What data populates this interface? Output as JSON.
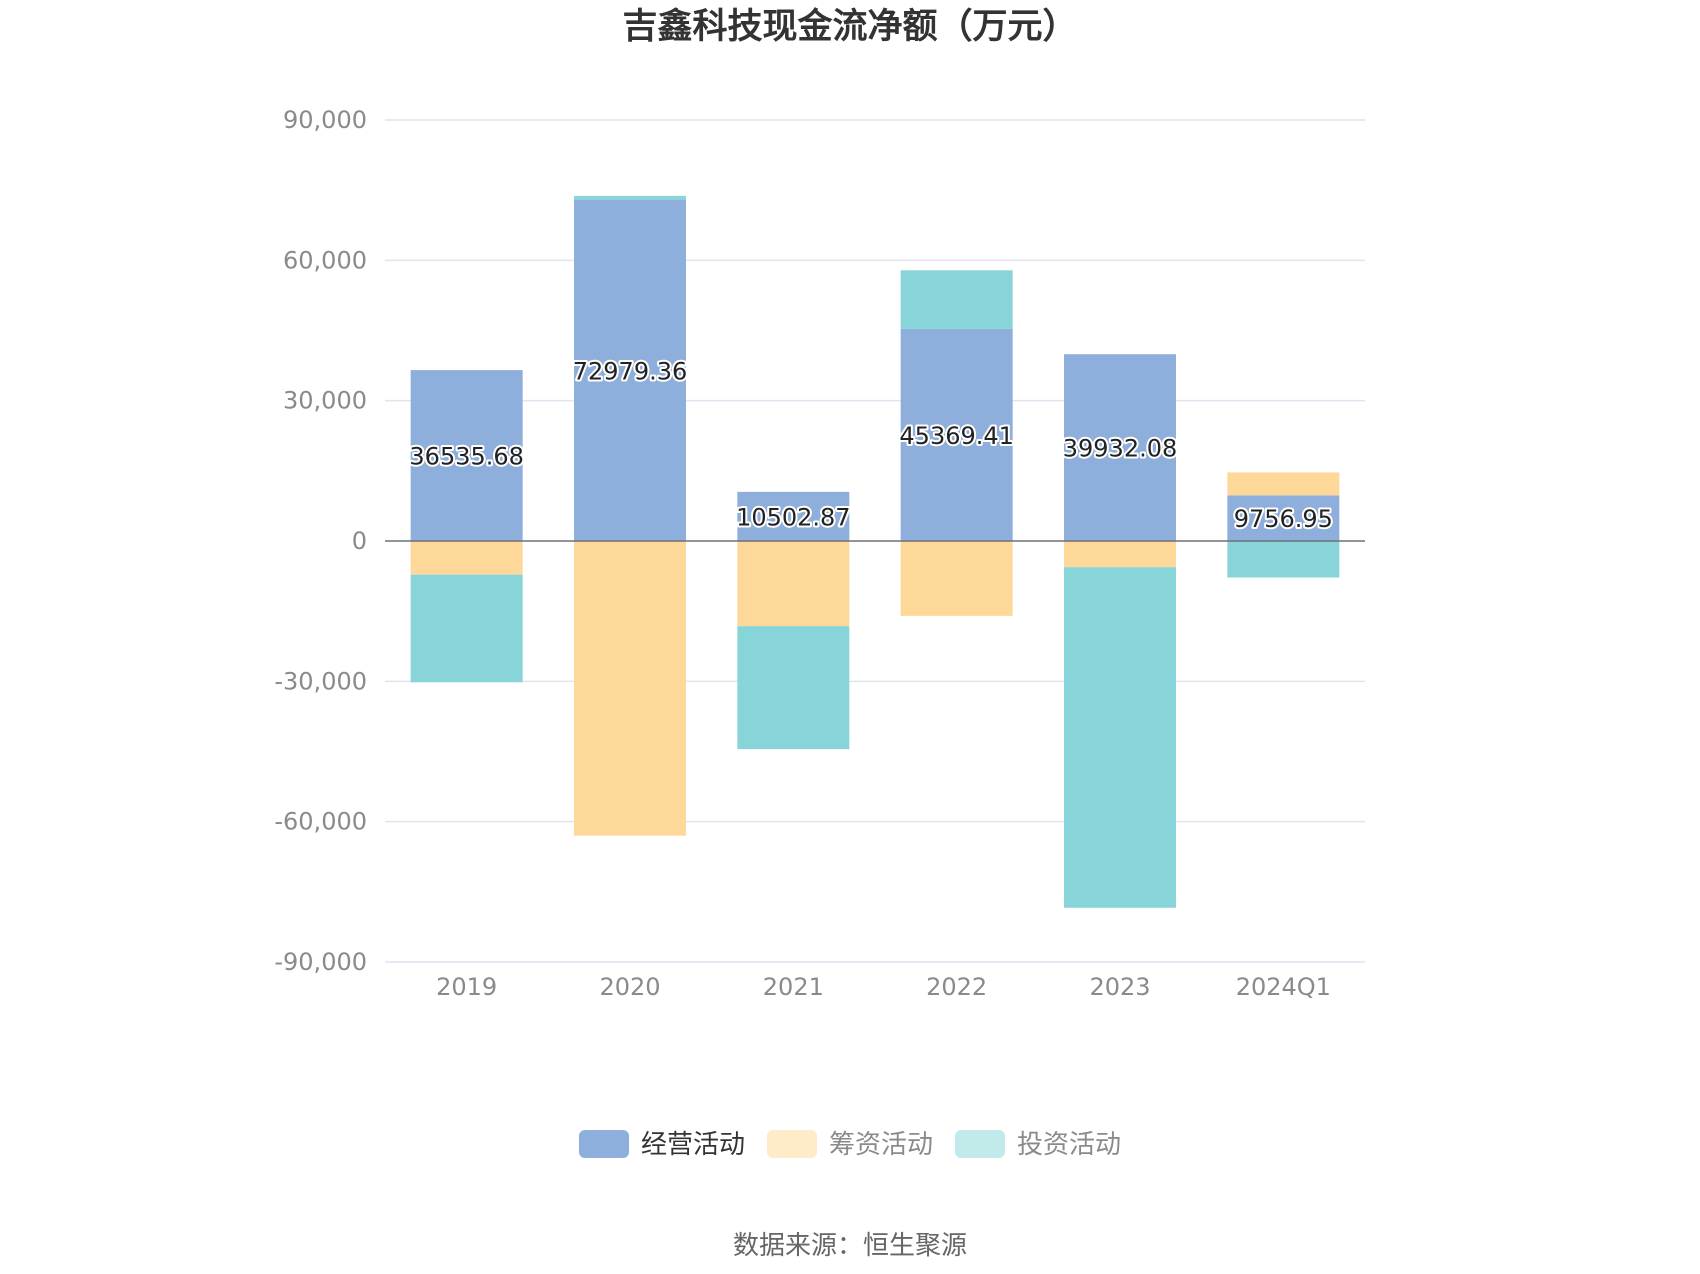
{
  "chart_data": {
    "type": "bar",
    "stacked": true,
    "title": "吉鑫科技现金流净额（万元）",
    "categories": [
      "2019",
      "2020",
      "2021",
      "2022",
      "2023",
      "2024Q1"
    ],
    "series": [
      {
        "name": "经营活动",
        "color": "#8eaedb",
        "values": [
          36535.68,
          72979.36,
          10502.87,
          45369.41,
          39932.08,
          9756.95
        ]
      },
      {
        "name": "筹资活动",
        "color": "#fed899",
        "values": [
          -7200,
          -63000,
          -18200,
          -16000,
          -5600,
          4900
        ]
      },
      {
        "name": "投资活动",
        "color": "#87d5d8",
        "values": [
          -23000,
          800,
          -26300,
          12500,
          -72800,
          -7800
        ]
      }
    ],
    "data_labels": [
      "36535.68",
      "72979.36",
      "10502.87",
      "45369.41",
      "39932.08",
      "9756.95"
    ],
    "ylim": [
      -90000,
      90000
    ],
    "yticks": [
      "90,000",
      "60,000",
      "30,000",
      "0",
      "-30,000",
      "-60,000",
      "-90,000"
    ],
    "ytick_values": [
      90000,
      60000,
      30000,
      0,
      -30000,
      -60000,
      -90000
    ],
    "grid": true,
    "legend_position": "bottom",
    "legend_colors": [
      "#8eaedb",
      "#feebc8",
      "#c2eaeb"
    ],
    "legend_text_colors": [
      "#333333",
      "#8a8a8a",
      "#8a8a8a"
    ]
  },
  "source_text": "数据来源：恒生聚源"
}
